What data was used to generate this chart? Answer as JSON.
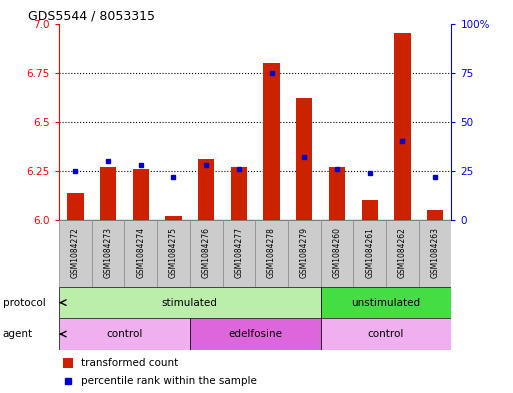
{
  "title": "GDS5544 / 8053315",
  "samples": [
    "GSM1084272",
    "GSM1084273",
    "GSM1084274",
    "GSM1084275",
    "GSM1084276",
    "GSM1084277",
    "GSM1084278",
    "GSM1084279",
    "GSM1084260",
    "GSM1084261",
    "GSM1084262",
    "GSM1084263"
  ],
  "transformed_counts": [
    6.14,
    6.27,
    6.26,
    6.02,
    6.31,
    6.27,
    6.8,
    6.62,
    6.27,
    6.1,
    6.95,
    6.05
  ],
  "percentile_ranks": [
    25,
    30,
    28,
    22,
    28,
    26,
    75,
    32,
    26,
    24,
    40,
    22
  ],
  "ylim_left": [
    6.0,
    7.0
  ],
  "ylim_right": [
    0,
    100
  ],
  "yticks_left": [
    6.0,
    6.25,
    6.5,
    6.75,
    7.0
  ],
  "yticks_right": [
    0,
    25,
    50,
    75,
    100
  ],
  "bar_color": "#cc2200",
  "dot_color": "#0000cc",
  "bar_width": 0.5,
  "protocol_groups": [
    {
      "label": "stimulated",
      "start": 0,
      "end": 7,
      "color": "#bbeeaa"
    },
    {
      "label": "unstimulated",
      "start": 8,
      "end": 11,
      "color": "#44dd44"
    }
  ],
  "agent_groups": [
    {
      "label": "control",
      "start": 0,
      "end": 3,
      "color": "#f0b0f0"
    },
    {
      "label": "edelfosine",
      "start": 4,
      "end": 7,
      "color": "#dd66dd"
    },
    {
      "label": "control",
      "start": 8,
      "end": 11,
      "color": "#f0b0f0"
    }
  ],
  "legend_items": [
    {
      "label": "transformed count",
      "color": "#cc2200"
    },
    {
      "label": "percentile rank within the sample",
      "color": "#0000cc"
    }
  ],
  "protocol_label": "protocol",
  "agent_label": "agent",
  "background_color": "#ffffff",
  "sample_box_color": "#cccccc",
  "sample_box_edge": "#888888"
}
